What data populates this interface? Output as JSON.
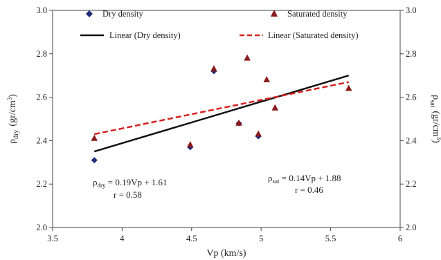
{
  "chart_data": {
    "type": "scatter",
    "xlabel": "Vp (km/s)",
    "ylabel_left": {
      "main": "ρ",
      "sub": "dry",
      "unit_pre": "(gr/cm",
      "unit_sup": "3",
      "unit_post": ")"
    },
    "ylabel_right": {
      "main": "ρ",
      "sub": "sat",
      "unit_pre": "(gr/cm",
      "unit_sup": "3",
      "unit_post": ")"
    },
    "xlim": [
      3.5,
      6
    ],
    "ylim": [
      2.0,
      3.0
    ],
    "x_ticks": [
      "3.5",
      "4",
      "4.5",
      "5",
      "5.5",
      "6"
    ],
    "x_tick_values": [
      3.5,
      4.0,
      4.5,
      5.0,
      5.5,
      6.0
    ],
    "y_ticks": [
      "2.0",
      "2.2",
      "2.4",
      "2.6",
      "2.8",
      "3.0"
    ],
    "y_tick_values": [
      2.0,
      2.2,
      2.4,
      2.6,
      2.8,
      3.0
    ],
    "grid": false,
    "legend_position": "top",
    "series": [
      {
        "name": "Dry density",
        "marker": "diamond",
        "color": "#1f2a7a",
        "points": [
          [
            3.8,
            2.31
          ],
          [
            4.49,
            2.37
          ],
          [
            4.66,
            2.72
          ],
          [
            4.84,
            2.48
          ],
          [
            4.98,
            2.42
          ]
        ]
      },
      {
        "name": "Saturated density",
        "marker": "triangle",
        "color": "#8b1a1a",
        "points": [
          [
            3.8,
            2.41
          ],
          [
            4.49,
            2.38
          ],
          [
            4.66,
            2.73
          ],
          [
            4.84,
            2.48
          ],
          [
            4.9,
            2.78
          ],
          [
            4.98,
            2.43
          ],
          [
            5.04,
            2.68
          ],
          [
            5.1,
            2.55
          ],
          [
            5.63,
            2.64
          ]
        ]
      }
    ],
    "trendlines": [
      {
        "name": "Linear (Dry density)",
        "color": "#111111",
        "style": "solid",
        "x": [
          3.8,
          5.63
        ],
        "y": [
          2.35,
          2.7
        ]
      },
      {
        "name": "Linear (Saturated density)",
        "color": "#d62020",
        "style": "dashed",
        "x": [
          3.8,
          5.63
        ],
        "y": [
          2.43,
          2.67
        ]
      }
    ],
    "annotations": [
      {
        "rho": "ρ",
        "sub": "dry",
        "eq": " = 0.19Vp + 1.61",
        "r": "r = 0.58"
      },
      {
        "rho": "ρ",
        "sub": "sat",
        "eq": " = 0.14Vp + 1.88",
        "r": "r = 0.46"
      }
    ]
  }
}
